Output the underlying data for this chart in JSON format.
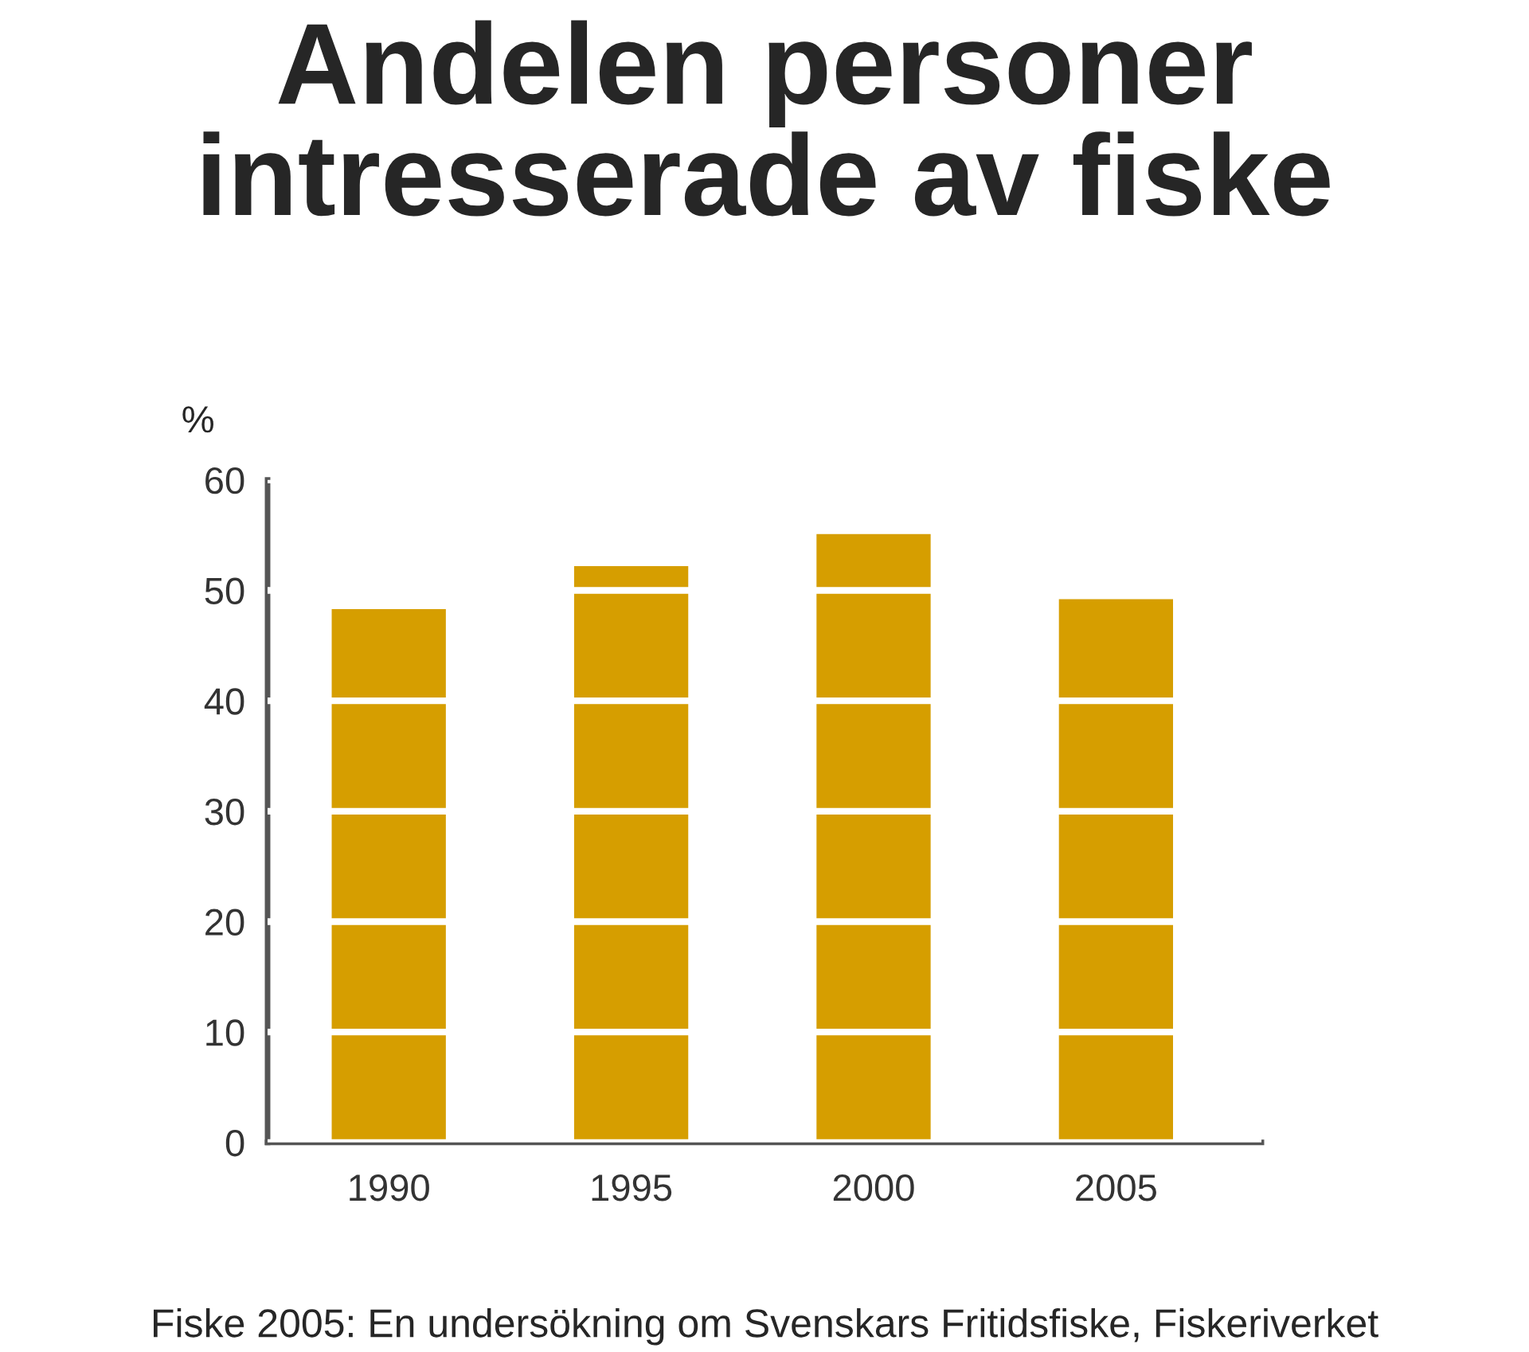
{
  "chart_data": {
    "type": "bar",
    "title": "Andelen personer\nintresserade av fiske",
    "ylabel": "%",
    "categories": [
      "1990",
      "1995",
      "2000",
      "2005"
    ],
    "values": [
      48.4,
      52.3,
      55.2,
      49.3
    ],
    "color": "#d69e00",
    "ylim": [
      0,
      60
    ],
    "yticks": [
      0,
      10,
      20,
      30,
      40,
      50,
      60
    ],
    "grid": "y",
    "annotations": [
      "Fiske 2005: En undersökning om Svenskars Fritidsfiske, Fiskeriverket"
    ]
  }
}
